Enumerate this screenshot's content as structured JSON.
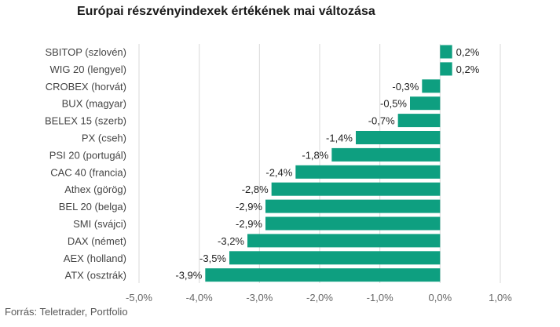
{
  "chart_data": {
    "type": "bar",
    "orientation": "horizontal",
    "title": "Európai részvényindexek értékének mai változása",
    "xlabel": "",
    "ylabel": "",
    "xlim": [
      -5.0,
      1.0
    ],
    "x_ticks": [
      {
        "value": -5.0,
        "label": "-5,0%"
      },
      {
        "value": -4.0,
        "label": "-4,0%"
      },
      {
        "value": -3.0,
        "label": "-3,0%"
      },
      {
        "value": -2.0,
        "label": "-2,0%"
      },
      {
        "value": -1.0,
        "label": "-1,0%"
      },
      {
        "value": 0.0,
        "label": "0,0%"
      },
      {
        "value": 1.0,
        "label": "1,0%"
      }
    ],
    "grid": "vertical",
    "categories": [
      "SBITOP (szlovén)",
      "WIG 20 (lengyel)",
      "CROBEX (horvát)",
      "BUX (magyar)",
      "BELEX 15 (szerb)",
      "PX (cseh)",
      "PSI 20 (portugál)",
      "CAC 40 (francia)",
      "Athex (görög)",
      "BEL 20 (belga)",
      "SMI (svájci)",
      "DAX (német)",
      "AEX (holland)",
      "ATX (osztrák)"
    ],
    "values": [
      0.2,
      0.2,
      -0.3,
      -0.5,
      -0.7,
      -1.4,
      -1.8,
      -2.4,
      -2.8,
      -2.9,
      -2.9,
      -3.2,
      -3.5,
      -3.9
    ],
    "data_labels": [
      "0,2%",
      "0,2%",
      "-0,3%",
      "-0,5%",
      "-0,7%",
      "-1,4%",
      "-1,8%",
      "-2,4%",
      "-2,8%",
      "-2,9%",
      "-2,9%",
      "-3,2%",
      "-3,5%",
      "-3,9%"
    ],
    "bar_color": "#0e9f80",
    "grid_color": "#d9d9d9"
  },
  "source": "Forrás: Teletrader, Portfolio"
}
